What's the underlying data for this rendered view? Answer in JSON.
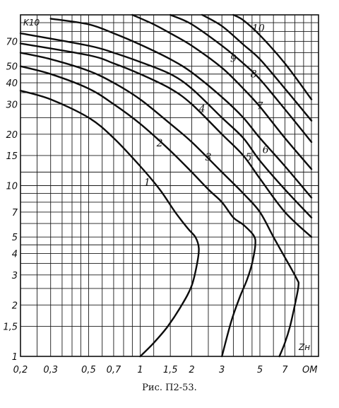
{
  "chart_data": {
    "type": "line",
    "x_scale": "log",
    "y_scale": "log",
    "xlim": [
      0.2,
      11
    ],
    "ylim": [
      1,
      100
    ],
    "grid": true,
    "ylabel": "K10",
    "xlabel": "Zн",
    "x_unit": "ОМ",
    "x_ticks": [
      {
        "value": 0.2,
        "label": "0,2"
      },
      {
        "value": 0.3,
        "label": "0,3"
      },
      {
        "value": 0.5,
        "label": "0,5"
      },
      {
        "value": 0.7,
        "label": "0,7"
      },
      {
        "value": 1,
        "label": "1"
      },
      {
        "value": 1.5,
        "label": "1,5"
      },
      {
        "value": 2,
        "label": "2"
      },
      {
        "value": 3,
        "label": "3"
      },
      {
        "value": 5,
        "label": "5"
      },
      {
        "value": 7,
        "label": "7"
      }
    ],
    "y_ticks": [
      {
        "value": 1,
        "label": "1"
      },
      {
        "value": 1.5,
        "label": "1,5"
      },
      {
        "value": 2,
        "label": "2"
      },
      {
        "value": 3,
        "label": "3"
      },
      {
        "value": 4,
        "label": "4"
      },
      {
        "value": 5,
        "label": "5"
      },
      {
        "value": 7,
        "label": "7"
      },
      {
        "value": 10,
        "label": "10"
      },
      {
        "value": 15,
        "label": "15"
      },
      {
        "value": 20,
        "label": "20"
      },
      {
        "value": 30,
        "label": "30"
      },
      {
        "value": 40,
        "label": "40"
      },
      {
        "value": 50,
        "label": "50"
      },
      {
        "value": 70,
        "label": "70"
      }
    ],
    "series": [
      {
        "name": "1",
        "points": [
          [
            0.2,
            36
          ],
          [
            0.3,
            32
          ],
          [
            0.5,
            25
          ],
          [
            0.7,
            19
          ],
          [
            1,
            13
          ],
          [
            1.3,
            9.5
          ],
          [
            1.6,
            7
          ],
          [
            1.9,
            5.6
          ],
          [
            2.1,
            5
          ],
          [
            2.2,
            4.3
          ],
          [
            2.15,
            3.5
          ],
          [
            2.0,
            2.6
          ],
          [
            1.75,
            2
          ],
          [
            1.45,
            1.5
          ],
          [
            1.2,
            1.2
          ],
          [
            1.0,
            1.0
          ]
        ]
      },
      {
        "name": "2",
        "points": [
          [
            0.2,
            50
          ],
          [
            0.3,
            45
          ],
          [
            0.5,
            37
          ],
          [
            0.7,
            30
          ],
          [
            1,
            23
          ],
          [
            1.5,
            16
          ],
          [
            2,
            12
          ],
          [
            2.5,
            9.5
          ],
          [
            3,
            8
          ],
          [
            3.5,
            6.5
          ],
          [
            4,
            5.9
          ],
          [
            4.6,
            5.1
          ],
          [
            4.7,
            4.5
          ],
          [
            4.5,
            3.5
          ],
          [
            4.2,
            2.8
          ],
          [
            3.8,
            2.2
          ],
          [
            3.4,
            1.6
          ],
          [
            3.0,
            1.0
          ]
        ]
      },
      {
        "name": "3",
        "points": [
          [
            0.2,
            60
          ],
          [
            0.3,
            55
          ],
          [
            0.5,
            47
          ],
          [
            0.7,
            40
          ],
          [
            1,
            32
          ],
          [
            1.5,
            23
          ],
          [
            2,
            18
          ],
          [
            3,
            12
          ],
          [
            4,
            9
          ],
          [
            5,
            7
          ],
          [
            6,
            5
          ],
          [
            7,
            3.8
          ],
          [
            8.2,
            2.85
          ],
          [
            8.4,
            2.6
          ],
          [
            8,
            2
          ],
          [
            7.5,
            1.5
          ],
          [
            7.0,
            1.2
          ],
          [
            6.5,
            1.0
          ]
        ]
      },
      {
        "name": "4",
        "points": [
          [
            0.2,
            68
          ],
          [
            0.5,
            58
          ],
          [
            0.7,
            52
          ],
          [
            1,
            45
          ],
          [
            1.5,
            37
          ],
          [
            2,
            30
          ],
          [
            3,
            20
          ],
          [
            4,
            15
          ],
          [
            5,
            11
          ],
          [
            7,
            7
          ],
          [
            10,
            5
          ]
        ]
      },
      {
        "name": "5",
        "points": [
          [
            0.2,
            78
          ],
          [
            0.5,
            66
          ],
          [
            0.7,
            60
          ],
          [
            1,
            53
          ],
          [
            1.5,
            45
          ],
          [
            2,
            37
          ],
          [
            3,
            25
          ],
          [
            4,
            19
          ],
          [
            5,
            14
          ],
          [
            7,
            9.5
          ],
          [
            10,
            6.5
          ]
        ]
      },
      {
        "name": "6",
        "points": [
          [
            0.3,
            95
          ],
          [
            0.5,
            88
          ],
          [
            0.7,
            78
          ],
          [
            1,
            67
          ],
          [
            1.5,
            55
          ],
          [
            2,
            46
          ],
          [
            3,
            33
          ],
          [
            4,
            25
          ],
          [
            5,
            19
          ],
          [
            7,
            13
          ],
          [
            10,
            8.5
          ]
        ]
      },
      {
        "name": "7",
        "points": [
          [
            0.9,
            100
          ],
          [
            1.2,
            88
          ],
          [
            1.5,
            78
          ],
          [
            2,
            66
          ],
          [
            3,
            49
          ],
          [
            4,
            37
          ],
          [
            5,
            29
          ],
          [
            7,
            19
          ],
          [
            10,
            12.5
          ]
        ]
      },
      {
        "name": "8",
        "points": [
          [
            1.5,
            100
          ],
          [
            2,
            88
          ],
          [
            3,
            66
          ],
          [
            4,
            52
          ],
          [
            5,
            42
          ],
          [
            7,
            28
          ],
          [
            10,
            18
          ]
        ]
      },
      {
        "name": "9",
        "points": [
          [
            2.3,
            100
          ],
          [
            3,
            86
          ],
          [
            4,
            67
          ],
          [
            5,
            55
          ],
          [
            7,
            37
          ],
          [
            10,
            24
          ]
        ]
      },
      {
        "name": "10",
        "points": [
          [
            3.5,
            100
          ],
          [
            4,
            93
          ],
          [
            5,
            76
          ],
          [
            7,
            52
          ],
          [
            10,
            32
          ]
        ]
      }
    ],
    "labels": [
      {
        "text": "1",
        "x": 1.1,
        "y": 10
      },
      {
        "text": "2",
        "x": 1.3,
        "y": 17
      },
      {
        "text": "3",
        "x": 2.5,
        "y": 14
      },
      {
        "text": "4",
        "x": 2.3,
        "y": 27
      },
      {
        "text": "5",
        "x": 4.3,
        "y": 14
      },
      {
        "text": "6",
        "x": 5.4,
        "y": 15.5
      },
      {
        "text": "7",
        "x": 5.0,
        "y": 28
      },
      {
        "text": "8",
        "x": 4.6,
        "y": 43
      },
      {
        "text": "9",
        "x": 3.5,
        "y": 53
      },
      {
        "text": "10",
        "x": 4.9,
        "y": 80
      }
    ]
  },
  "caption": "Рис. П2-53."
}
